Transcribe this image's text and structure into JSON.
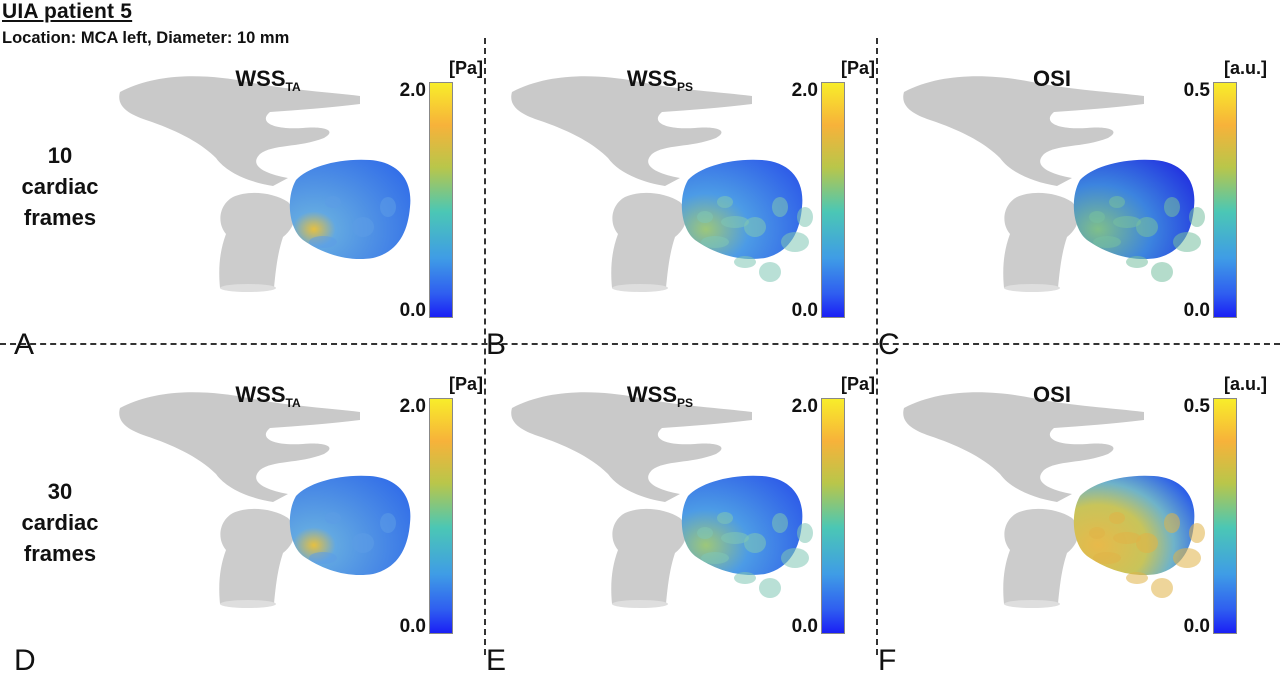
{
  "header": {
    "title": "UIA patient 5",
    "subtitle": "Location: MCA left, Diameter: 10 mm"
  },
  "rows": [
    {
      "lines": [
        "10",
        "cardiac",
        "frames"
      ]
    },
    {
      "lines": [
        "30",
        "cardiac",
        "frames"
      ]
    }
  ],
  "panels": [
    {
      "letter": "A",
      "metric": "WSS",
      "sub": "TA",
      "unit": "[Pa]",
      "max": "2.0",
      "min": "0.0"
    },
    {
      "letter": "B",
      "metric": "WSS",
      "sub": "PS",
      "unit": "[Pa]",
      "max": "2.0",
      "min": "0.0"
    },
    {
      "letter": "C",
      "metric": "OSI",
      "sub": "",
      "unit": "[a.u.]",
      "max": "0.5",
      "min": "0.0"
    },
    {
      "letter": "D",
      "metric": "WSS",
      "sub": "TA",
      "unit": "[Pa]",
      "max": "2.0",
      "min": "0.0"
    },
    {
      "letter": "E",
      "metric": "WSS",
      "sub": "PS",
      "unit": "[Pa]",
      "max": "2.0",
      "min": "0.0"
    },
    {
      "letter": "F",
      "metric": "OSI",
      "sub": "",
      "unit": "[a.u.]",
      "max": "0.5",
      "min": "0.0"
    }
  ],
  "colors": {
    "vessel_gray": "#c9c9c9",
    "scale_low": "#1a1ff5",
    "scale_mid": "#4bc7b5",
    "scale_high": "#f8ed2a"
  }
}
